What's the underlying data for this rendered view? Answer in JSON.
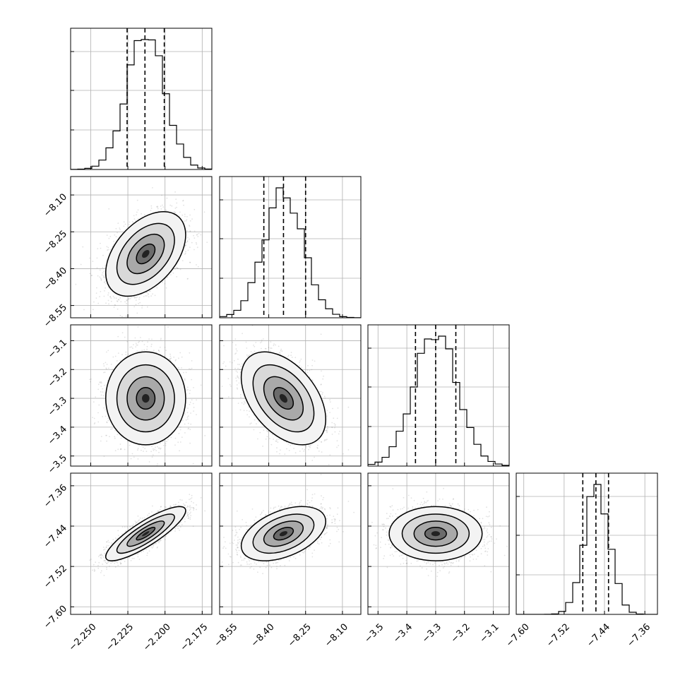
{
  "chart_data": {
    "type": "corner",
    "title": "",
    "parameters": [
      {
        "index": 0,
        "mean": -2.213,
        "std": 0.0125,
        "range": [
          -2.2635,
          -2.1685
        ],
        "ticks": [
          -2.25,
          -2.225,
          -2.2,
          -2.175
        ],
        "tick_labels": [
          "−2.250",
          "−2.225",
          "−2.200",
          "−2.175"
        ],
        "quantiles": [
          -2.2255,
          -2.2135,
          -2.2005
        ]
      },
      {
        "index": 1,
        "mean": -8.34,
        "std": 0.08,
        "range": [
          -8.6,
          -8.025
        ],
        "ticks": [
          -8.55,
          -8.4,
          -8.25,
          -8.1
        ],
        "tick_labels": [
          "−8.55",
          "−8.40",
          "−8.25",
          "−8.10"
        ],
        "quantiles": [
          -8.42,
          -8.34,
          -8.25
        ]
      },
      {
        "index": 2,
        "mean": -3.3,
        "std": 0.075,
        "range": [
          -3.535,
          -3.045
        ],
        "ticks": [
          -3.5,
          -3.4,
          -3.3,
          -3.2,
          -3.1
        ],
        "tick_labels": [
          "−3.5",
          "−3.4",
          "−3.3",
          "−3.2",
          "−3.1"
        ],
        "quantiles": [
          -3.37,
          -3.3,
          -3.23
        ]
      },
      {
        "index": 3,
        "mean": -7.455,
        "std": 0.025,
        "range": [
          -7.615,
          -7.335
        ],
        "ticks": [
          -7.6,
          -7.52,
          -7.44,
          -7.36
        ],
        "tick_labels": [
          "−7.60",
          "−7.52",
          "−7.44",
          "−7.36"
        ],
        "quantiles": [
          -7.483,
          -7.457,
          -7.432
        ]
      }
    ],
    "correlations": [
      {
        "pair": [
          0,
          1
        ],
        "r": 0.45
      },
      {
        "pair": [
          0,
          2
        ],
        "r": 0.0
      },
      {
        "pair": [
          1,
          2
        ],
        "r": -0.45
      },
      {
        "pair": [
          0,
          3
        ],
        "r": 0.85
      },
      {
        "pair": [
          1,
          3
        ],
        "r": 0.45
      },
      {
        "pair": [
          2,
          3
        ],
        "r": 0.0
      }
    ],
    "samples_shown": 2500,
    "histogram_bins": 20,
    "grid": true,
    "colors": {
      "line": "#000000",
      "points": "#7a7a7a",
      "grid": "#b0b0b0"
    }
  }
}
